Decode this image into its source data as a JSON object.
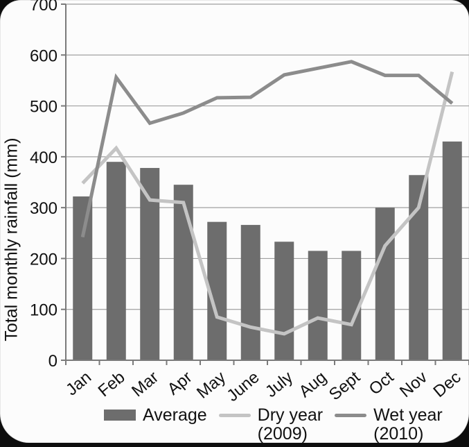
{
  "figure": {
    "background_color": "#0e0e0e",
    "card_color": "#fcfcfc"
  },
  "chart_data": {
    "type": "bar+line",
    "title": "",
    "xlabel": "",
    "ylabel": "Total monthly rainfall (mm)",
    "ylim": [
      0,
      700
    ],
    "ytick_step": 100,
    "grid": true,
    "legend_position": "bottom",
    "categories": [
      "Jan",
      "Feb",
      "Mar",
      "Apr",
      "May",
      "June",
      "July",
      "Aug",
      "Sept",
      "Oct",
      "Nov",
      "Dec"
    ],
    "series": [
      {
        "name": "Average",
        "type": "bar",
        "color": "#6d6d6d",
        "values": [
          322,
          390,
          378,
          345,
          272,
          266,
          233,
          215,
          215,
          300,
          364,
          430
        ]
      },
      {
        "name": "Dry year (2009)",
        "type": "line",
        "color": "#c4c4c4",
        "values": [
          348,
          417,
          315,
          310,
          85,
          65,
          52,
          83,
          70,
          225,
          300,
          567
        ]
      },
      {
        "name": "Wet year (2010)",
        "type": "line",
        "color": "#8c8c8c",
        "values": [
          242,
          556,
          466,
          486,
          516,
          517,
          561,
          574,
          587,
          560,
          560,
          505
        ]
      }
    ],
    "legend": [
      {
        "label": "Average",
        "sublabel": "",
        "type": "bar",
        "color": "#6d6d6d"
      },
      {
        "label": "Dry year",
        "sublabel": "(2009)",
        "type": "line",
        "color": "#c4c4c4"
      },
      {
        "label": "Wet year",
        "sublabel": "(2010)",
        "type": "line",
        "color": "#8c8c8c"
      }
    ],
    "colors": {
      "grid": "#a0a0a0",
      "axis": "#7a7a7a",
      "text": "#111111"
    }
  }
}
